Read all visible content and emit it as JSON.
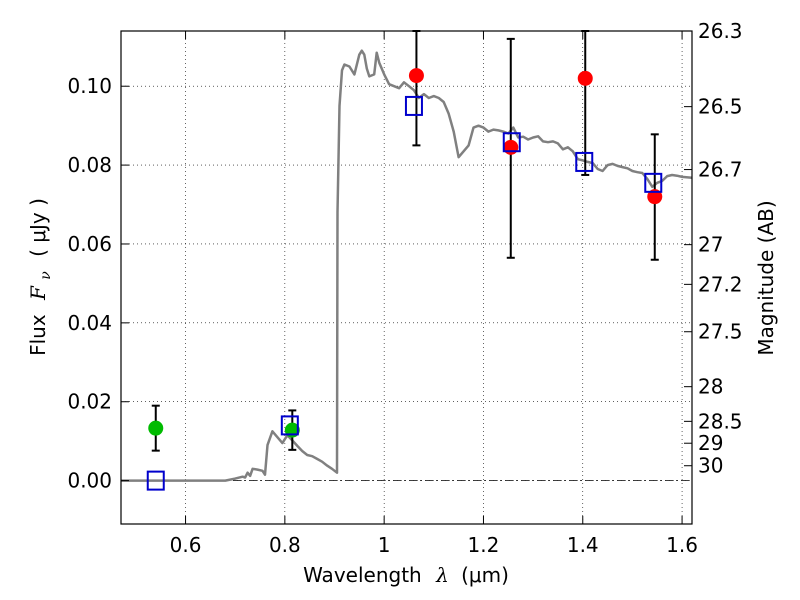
{
  "chart_data": {
    "type": "scatter",
    "xlabel": "Wavelength",
    "xlabel_symbol": "λ",
    "xlabel_unit": "(μm)",
    "ylabel": "Flux",
    "ylabel_symbol": "F",
    "ylabel_subscript": "ν",
    "ylabel_unit": "( μJy )",
    "y2label": "Magnitude (AB)",
    "xlim": [
      0.47,
      1.62
    ],
    "ylim": [
      -0.011,
      0.114
    ],
    "grid": true,
    "grid_style": "dotted",
    "zero_line": true,
    "xticks": [
      {
        "value": 0.6,
        "label": "0.6"
      },
      {
        "value": 0.8,
        "label": "0.8"
      },
      {
        "value": 1.0,
        "label": "1"
      },
      {
        "value": 1.2,
        "label": "1.2"
      },
      {
        "value": 1.4,
        "label": "1.4"
      },
      {
        "value": 1.6,
        "label": "1.6"
      }
    ],
    "yticks": [
      {
        "value": 0.0,
        "label": "0.00"
      },
      {
        "value": 0.02,
        "label": "0.02"
      },
      {
        "value": 0.04,
        "label": "0.04"
      },
      {
        "value": 0.06,
        "label": "0.06"
      },
      {
        "value": 0.08,
        "label": "0.08"
      },
      {
        "value": 0.1,
        "label": "0.10"
      }
    ],
    "magnitude_ticks": [
      {
        "mag": 26.3,
        "label": "26.3"
      },
      {
        "mag": 26.5,
        "label": "26.5"
      },
      {
        "mag": 26.7,
        "label": "26.7"
      },
      {
        "mag": 27.0,
        "label": "27"
      },
      {
        "mag": 27.2,
        "label": "27.2"
      },
      {
        "mag": 27.5,
        "label": "27.5"
      },
      {
        "mag": 28.0,
        "label": "28"
      },
      {
        "mag": 28.5,
        "label": "28.5"
      },
      {
        "mag": 29.0,
        "label": "29"
      },
      {
        "mag": 30.0,
        "label": "30"
      }
    ],
    "model_spectrum": {
      "color": "#808080",
      "points": [
        [
          0.47,
          0.0
        ],
        [
          0.6,
          0.0
        ],
        [
          0.68,
          0.0
        ],
        [
          0.7,
          0.0005
        ],
        [
          0.715,
          0.001
        ],
        [
          0.72,
          0.0008
        ],
        [
          0.725,
          0.002
        ],
        [
          0.73,
          0.0012
        ],
        [
          0.735,
          0.003
        ],
        [
          0.745,
          0.0028
        ],
        [
          0.755,
          0.0025
        ],
        [
          0.76,
          0.0015
        ],
        [
          0.765,
          0.009
        ],
        [
          0.775,
          0.0125
        ],
        [
          0.785,
          0.011
        ],
        [
          0.795,
          0.0095
        ],
        [
          0.805,
          0.0115
        ],
        [
          0.815,
          0.0102
        ],
        [
          0.825,
          0.0088
        ],
        [
          0.835,
          0.0075
        ],
        [
          0.845,
          0.0065
        ],
        [
          0.855,
          0.0062
        ],
        [
          0.865,
          0.0055
        ],
        [
          0.875,
          0.0048
        ],
        [
          0.885,
          0.0038
        ],
        [
          0.895,
          0.003
        ],
        [
          0.905,
          0.002
        ],
        [
          0.906,
          0.068
        ],
        [
          0.91,
          0.095
        ],
        [
          0.915,
          0.104
        ],
        [
          0.92,
          0.1055
        ],
        [
          0.93,
          0.105
        ],
        [
          0.94,
          0.103
        ],
        [
          0.95,
          0.108
        ],
        [
          0.955,
          0.109
        ],
        [
          0.96,
          0.108
        ],
        [
          0.965,
          0.1045
        ],
        [
          0.97,
          0.1025
        ],
        [
          0.98,
          0.103
        ],
        [
          0.985,
          0.1085
        ],
        [
          0.99,
          0.106
        ],
        [
          1.0,
          0.103
        ],
        [
          1.01,
          0.1005
        ],
        [
          1.02,
          0.1
        ],
        [
          1.03,
          0.0995
        ],
        [
          1.04,
          0.101
        ],
        [
          1.05,
          0.1
        ],
        [
          1.06,
          0.099
        ],
        [
          1.07,
          0.097
        ],
        [
          1.08,
          0.098
        ],
        [
          1.09,
          0.097
        ],
        [
          1.1,
          0.0975
        ],
        [
          1.11,
          0.097
        ],
        [
          1.12,
          0.096
        ],
        [
          1.13,
          0.093
        ],
        [
          1.14,
          0.0885
        ],
        [
          1.15,
          0.082
        ],
        [
          1.16,
          0.0835
        ],
        [
          1.17,
          0.085
        ],
        [
          1.18,
          0.0895
        ],
        [
          1.19,
          0.09
        ],
        [
          1.2,
          0.0895
        ],
        [
          1.21,
          0.0885
        ],
        [
          1.22,
          0.089
        ],
        [
          1.23,
          0.0888
        ],
        [
          1.24,
          0.0885
        ],
        [
          1.25,
          0.088
        ],
        [
          1.26,
          0.0895
        ],
        [
          1.27,
          0.087
        ],
        [
          1.28,
          0.0872
        ],
        [
          1.29,
          0.0865
        ],
        [
          1.3,
          0.087
        ],
        [
          1.31,
          0.0873
        ],
        [
          1.32,
          0.086
        ],
        [
          1.33,
          0.0858
        ],
        [
          1.34,
          0.086
        ],
        [
          1.35,
          0.0855
        ],
        [
          1.36,
          0.084
        ],
        [
          1.37,
          0.0845
        ],
        [
          1.38,
          0.0835
        ],
        [
          1.39,
          0.0815
        ],
        [
          1.4,
          0.0812
        ],
        [
          1.41,
          0.0808
        ],
        [
          1.42,
          0.0805
        ],
        [
          1.43,
          0.079
        ],
        [
          1.44,
          0.0785
        ],
        [
          1.45,
          0.08
        ],
        [
          1.46,
          0.0803
        ],
        [
          1.47,
          0.0798
        ],
        [
          1.48,
          0.0795
        ],
        [
          1.49,
          0.0792
        ],
        [
          1.5,
          0.0785
        ],
        [
          1.51,
          0.0782
        ],
        [
          1.52,
          0.078
        ],
        [
          1.53,
          0.0765
        ],
        [
          1.54,
          0.0745
        ],
        [
          1.55,
          0.0755
        ],
        [
          1.56,
          0.076
        ],
        [
          1.57,
          0.0772
        ],
        [
          1.58,
          0.0775
        ],
        [
          1.59,
          0.0773
        ],
        [
          1.6,
          0.077
        ],
        [
          1.62,
          0.0768
        ]
      ]
    },
    "series": [
      {
        "marker": "circle",
        "color": "#00bb00",
        "points": [
          {
            "x": 0.54,
            "y": 0.0133,
            "yerr": 0.0057
          },
          {
            "x": 0.815,
            "y": 0.0128,
            "yerr": 0.005
          }
        ]
      },
      {
        "marker": "circle",
        "color": "#ff0000",
        "points": [
          {
            "x": 1.065,
            "y": 0.1027,
            "err_low": 0.085,
            "err_high": 0.114
          },
          {
            "x": 1.255,
            "y": 0.0845,
            "err_low": 0.0565,
            "err_high": 0.112
          },
          {
            "x": 1.405,
            "y": 0.102,
            "err_low": 0.0775,
            "err_high": 0.114
          },
          {
            "x": 1.545,
            "y": 0.072,
            "err_low": 0.056,
            "err_high": 0.0878
          }
        ]
      },
      {
        "marker": "square-open",
        "color": "#0000cc",
        "points": [
          {
            "x": 0.54,
            "y": 0.0
          },
          {
            "x": 0.81,
            "y": 0.014
          },
          {
            "x": 1.06,
            "y": 0.095
          },
          {
            "x": 1.257,
            "y": 0.0858
          },
          {
            "x": 1.403,
            "y": 0.0808
          },
          {
            "x": 1.542,
            "y": 0.0755
          }
        ]
      }
    ]
  }
}
